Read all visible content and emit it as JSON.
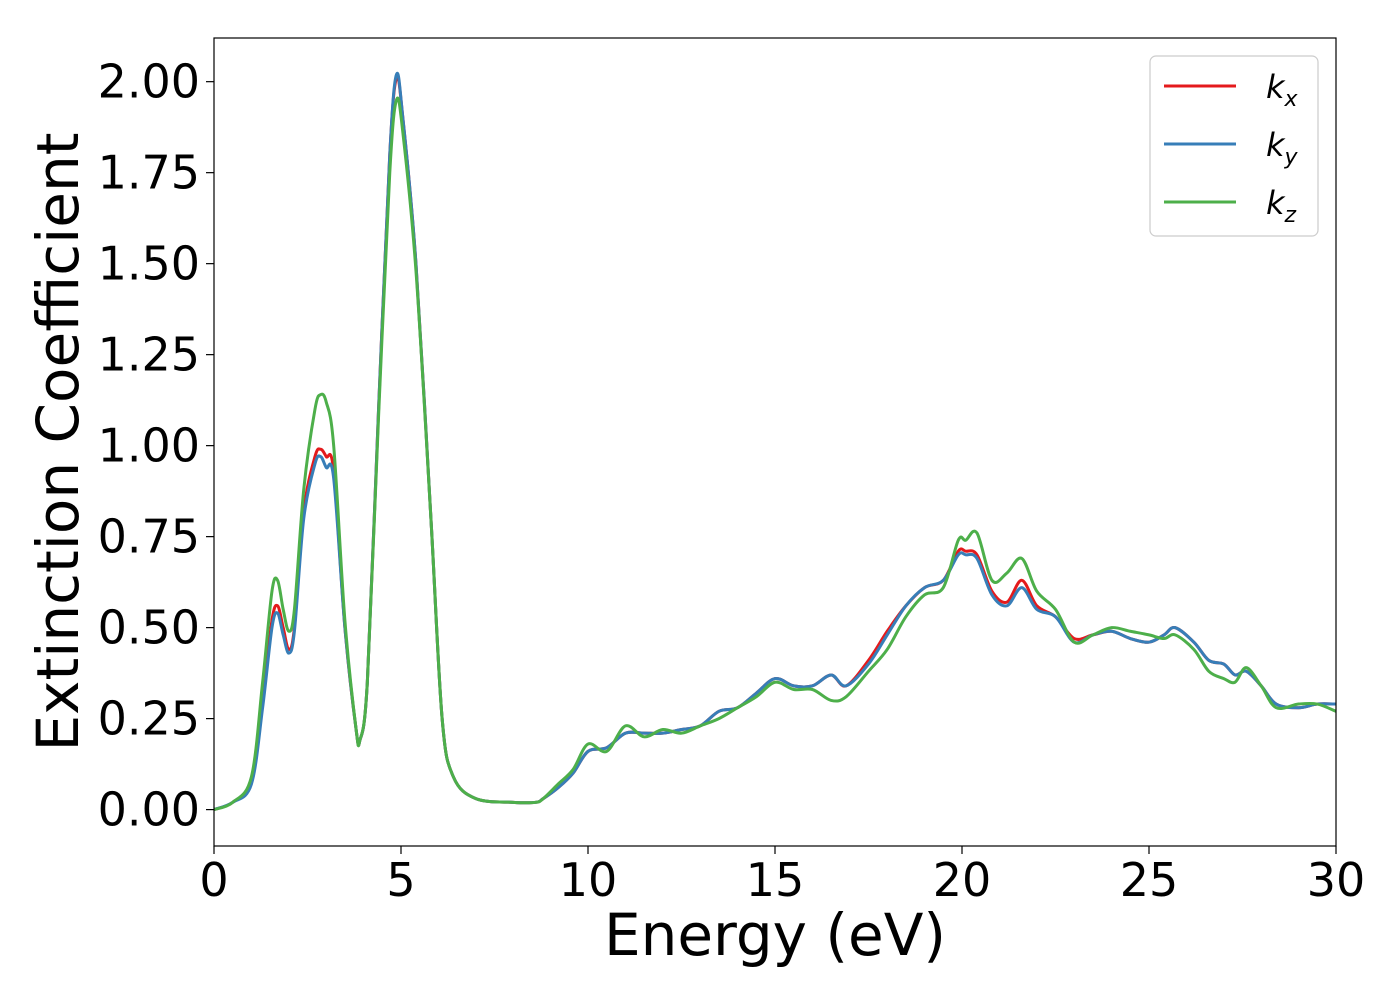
{
  "chart_data": {
    "type": "line",
    "title": "",
    "xlabel": "Energy (eV)",
    "ylabel": "Extinction Coefficient",
    "xlim": [
      0,
      30
    ],
    "ylim": [
      -0.1,
      2.12
    ],
    "xticks": [
      0,
      5,
      10,
      15,
      20,
      25,
      30
    ],
    "xtick_labels": [
      "0",
      "5",
      "10",
      "15",
      "20",
      "25",
      "30"
    ],
    "yticks": [
      0,
      0.25,
      0.5,
      0.75,
      1.0,
      1.25,
      1.5,
      1.75,
      2.0
    ],
    "ytick_labels": [
      "0.00",
      "0.25",
      "0.50",
      "0.75",
      "1.00",
      "1.25",
      "1.50",
      "1.75",
      "2.00"
    ],
    "grid": false,
    "legend_position": "top-right",
    "series": [
      {
        "name": "k_x",
        "label_main": "k",
        "label_sub": "x",
        "color": "#e41a1c",
        "x": [
          0,
          0.5,
          1.0,
          1.3,
          1.55,
          1.7,
          1.85,
          2.0,
          2.15,
          2.4,
          2.7,
          2.85,
          3.0,
          3.2,
          3.5,
          3.8,
          3.9,
          4.1,
          4.4,
          4.7,
          4.88,
          5.05,
          5.4,
          5.8,
          6.1,
          6.4,
          7.0,
          8.0,
          8.6,
          8.8,
          9.2,
          9.6,
          10.0,
          10.5,
          11.0,
          11.5,
          12.0,
          12.5,
          13.0,
          13.5,
          14.0,
          14.5,
          15.0,
          15.5,
          16.0,
          16.5,
          16.9,
          17.5,
          18.0,
          18.5,
          19.0,
          19.5,
          19.9,
          20.1,
          20.4,
          20.8,
          21.2,
          21.6,
          22.0,
          22.5,
          23.0,
          23.5,
          24.0,
          24.5,
          25.0,
          25.4,
          25.7,
          26.2,
          26.6,
          27.0,
          27.3,
          27.6,
          28.0,
          28.4,
          29.0,
          29.5,
          30.0
        ],
        "y": [
          0.0,
          0.02,
          0.08,
          0.3,
          0.52,
          0.56,
          0.5,
          0.44,
          0.5,
          0.82,
          0.97,
          0.99,
          0.97,
          0.93,
          0.5,
          0.22,
          0.19,
          0.35,
          1.1,
          1.8,
          2.01,
          1.9,
          1.5,
          0.8,
          0.25,
          0.09,
          0.03,
          0.02,
          0.02,
          0.03,
          0.06,
          0.1,
          0.16,
          0.17,
          0.21,
          0.21,
          0.21,
          0.22,
          0.23,
          0.27,
          0.28,
          0.32,
          0.36,
          0.34,
          0.34,
          0.37,
          0.34,
          0.41,
          0.49,
          0.56,
          0.61,
          0.63,
          0.71,
          0.71,
          0.7,
          0.6,
          0.57,
          0.63,
          0.56,
          0.53,
          0.47,
          0.48,
          0.49,
          0.47,
          0.46,
          0.48,
          0.5,
          0.46,
          0.41,
          0.4,
          0.37,
          0.38,
          0.34,
          0.29,
          0.28,
          0.29,
          0.29
        ]
      },
      {
        "name": "k_y",
        "label_main": "k",
        "label_sub": "y",
        "color": "#377eb8",
        "x": [
          0,
          0.5,
          1.0,
          1.3,
          1.55,
          1.7,
          1.85,
          2.0,
          2.15,
          2.4,
          2.7,
          2.85,
          3.0,
          3.2,
          3.5,
          3.8,
          3.9,
          4.1,
          4.4,
          4.7,
          4.88,
          5.05,
          5.4,
          5.8,
          6.1,
          6.4,
          7.0,
          8.0,
          8.6,
          8.8,
          9.2,
          9.6,
          10.0,
          10.5,
          11.0,
          11.5,
          12.0,
          12.5,
          13.0,
          13.5,
          14.0,
          14.5,
          15.0,
          15.5,
          16.0,
          16.5,
          16.9,
          17.5,
          18.0,
          18.5,
          19.0,
          19.5,
          19.9,
          20.1,
          20.4,
          20.8,
          21.2,
          21.6,
          22.0,
          22.5,
          23.0,
          23.5,
          24.0,
          24.5,
          25.0,
          25.4,
          25.7,
          26.2,
          26.6,
          27.0,
          27.3,
          27.6,
          28.0,
          28.4,
          29.0,
          29.5,
          30.0
        ],
        "y": [
          0.0,
          0.02,
          0.07,
          0.28,
          0.5,
          0.54,
          0.48,
          0.43,
          0.49,
          0.8,
          0.95,
          0.97,
          0.94,
          0.91,
          0.5,
          0.22,
          0.19,
          0.35,
          1.1,
          1.8,
          2.02,
          1.9,
          1.5,
          0.8,
          0.25,
          0.09,
          0.03,
          0.02,
          0.02,
          0.03,
          0.06,
          0.1,
          0.16,
          0.17,
          0.21,
          0.21,
          0.21,
          0.22,
          0.23,
          0.27,
          0.28,
          0.32,
          0.36,
          0.34,
          0.34,
          0.37,
          0.34,
          0.4,
          0.48,
          0.56,
          0.61,
          0.63,
          0.7,
          0.7,
          0.69,
          0.59,
          0.56,
          0.61,
          0.55,
          0.53,
          0.46,
          0.48,
          0.49,
          0.47,
          0.46,
          0.48,
          0.5,
          0.46,
          0.41,
          0.4,
          0.37,
          0.38,
          0.34,
          0.29,
          0.28,
          0.29,
          0.29
        ]
      },
      {
        "name": "k_z",
        "label_main": "k",
        "label_sub": "z",
        "color": "#4daf4a",
        "x": [
          0,
          0.5,
          1.0,
          1.3,
          1.55,
          1.7,
          1.85,
          2.0,
          2.15,
          2.4,
          2.7,
          2.85,
          3.0,
          3.2,
          3.5,
          3.8,
          3.9,
          4.1,
          4.4,
          4.7,
          4.88,
          5.05,
          5.4,
          5.8,
          6.1,
          6.4,
          7.0,
          8.0,
          8.6,
          8.8,
          9.2,
          9.6,
          10.0,
          10.5,
          11.0,
          11.5,
          12.0,
          12.5,
          13.0,
          13.5,
          14.0,
          14.5,
          15.0,
          15.5,
          16.0,
          16.5,
          16.9,
          17.5,
          18.0,
          18.5,
          19.0,
          19.5,
          19.9,
          20.1,
          20.4,
          20.8,
          21.2,
          21.6,
          22.0,
          22.5,
          23.0,
          23.5,
          24.0,
          24.5,
          25.0,
          25.4,
          25.7,
          26.2,
          26.6,
          27.0,
          27.3,
          27.6,
          28.0,
          28.4,
          29.0,
          29.5,
          30.0
        ],
        "y": [
          0.0,
          0.02,
          0.09,
          0.35,
          0.6,
          0.63,
          0.55,
          0.49,
          0.55,
          0.88,
          1.1,
          1.14,
          1.12,
          1.0,
          0.52,
          0.22,
          0.19,
          0.35,
          1.08,
          1.75,
          1.95,
          1.86,
          1.48,
          0.8,
          0.25,
          0.09,
          0.03,
          0.02,
          0.02,
          0.03,
          0.07,
          0.11,
          0.18,
          0.16,
          0.23,
          0.2,
          0.22,
          0.21,
          0.23,
          0.25,
          0.28,
          0.31,
          0.35,
          0.33,
          0.33,
          0.3,
          0.31,
          0.38,
          0.44,
          0.53,
          0.59,
          0.61,
          0.74,
          0.74,
          0.76,
          0.63,
          0.65,
          0.69,
          0.6,
          0.55,
          0.46,
          0.48,
          0.5,
          0.49,
          0.48,
          0.47,
          0.48,
          0.44,
          0.38,
          0.36,
          0.35,
          0.39,
          0.34,
          0.28,
          0.29,
          0.29,
          0.27
        ]
      }
    ]
  }
}
